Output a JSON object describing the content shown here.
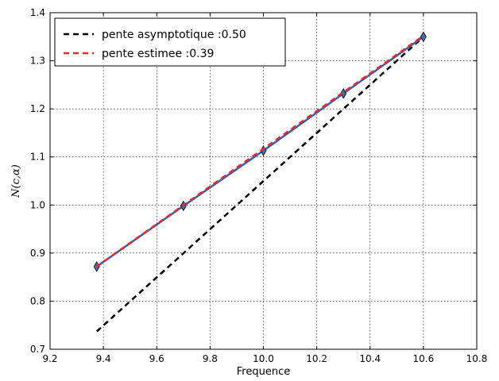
{
  "chart_data": {
    "type": "line",
    "title": "",
    "xlabel": "Frequence",
    "ylabel": "N(c,α)",
    "xlim": [
      9.2,
      10.8
    ],
    "ylim": [
      0.7,
      1.4
    ],
    "xticks": [
      9.2,
      9.4,
      9.6,
      9.8,
      10.0,
      10.2,
      10.4,
      10.6,
      10.8
    ],
    "xtick_labels": [
      "9.2",
      "9.4",
      "9.6",
      "9.8",
      "10.0",
      "10.2",
      "10.4",
      "10.6",
      "10.8"
    ],
    "yticks": [
      0.7,
      0.8,
      0.9,
      1.0,
      1.1,
      1.2,
      1.3,
      1.4
    ],
    "ytick_labels": [
      "0.7",
      "0.8",
      "0.9",
      "1.0",
      "1.1",
      "1.2",
      "1.3",
      "1.4"
    ],
    "grid": true,
    "legend_position": "top-left",
    "series": [
      {
        "name": "pente asymptotique :0.50",
        "style": "dashed",
        "color": "#000000",
        "x": [
          9.375,
          10.6
        ],
        "y": [
          0.737,
          1.35
        ]
      },
      {
        "name": "pente estimee :0.39",
        "style": "dashed",
        "color": "#e8262b",
        "x": [
          9.375,
          10.6
        ],
        "y": [
          0.872,
          1.352
        ]
      },
      {
        "style": "solid",
        "color": "#3a5da8",
        "marker": "diamond",
        "x": [
          9.375,
          9.7,
          10.0,
          10.3,
          10.6
        ],
        "y": [
          0.872,
          0.998,
          1.113,
          1.232,
          1.35
        ]
      }
    ]
  }
}
